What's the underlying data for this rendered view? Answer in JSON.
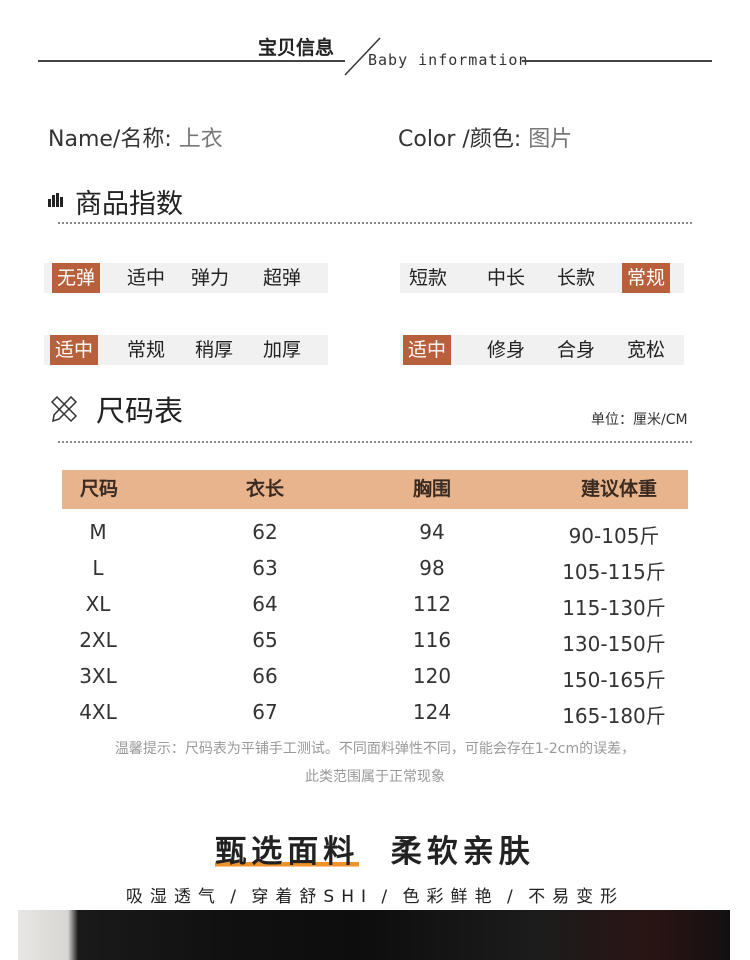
{
  "header": {
    "title_cn": "宝贝信息",
    "title_en": "Baby information"
  },
  "info": {
    "name_label": "Name/名称:",
    "name_value": "上衣",
    "color_label": "Color /颜色:",
    "color_value": "图片"
  },
  "index_section": {
    "title": "商品指数",
    "icon": "bar-chart-icon",
    "groups": [
      {
        "options": [
          "无弹",
          "适中",
          "弹力",
          "超弹"
        ],
        "selected": 0
      },
      {
        "options": [
          "短款",
          "中长",
          "长款",
          "常规"
        ],
        "selected": 3
      },
      {
        "options": [
          "适中",
          "常规",
          "稍厚",
          "加厚"
        ],
        "selected": 0
      },
      {
        "options": [
          "适中",
          "修身",
          "合身",
          "宽松"
        ],
        "selected": 0
      }
    ],
    "highlight_color": "#b8603c"
  },
  "size_section": {
    "title": "尺码表",
    "icon": "ruler-pencil-icon",
    "unit": "单位：厘米/CM",
    "header_color": "#e8b48e",
    "columns": [
      "尺码",
      "衣长",
      "胸围",
      "建议体重"
    ],
    "rows": [
      [
        "M",
        "62",
        "94",
        "90-105斤"
      ],
      [
        "L",
        "63",
        "98",
        "105-115斤"
      ],
      [
        "XL",
        "64",
        "112",
        "115-130斤"
      ],
      [
        "2XL",
        "65",
        "116",
        "130-150斤"
      ],
      [
        "3XL",
        "66",
        "120",
        "150-165斤"
      ],
      [
        "4XL",
        "67",
        "124",
        "165-180斤"
      ]
    ],
    "note_line1": "温馨提示：尺码表为平铺手工测试。不同面料弹性不同，可能会存在1-2cm的误差，",
    "note_line2": "此类范围属于正常现象"
  },
  "fabric": {
    "title_a": "甄选面料",
    "title_b": "柔软亲肤",
    "subtitle": "吸湿透气 / 穿着舒SHI / 色彩鲜艳 / 不易变形",
    "accent_color": "#f0922a"
  }
}
